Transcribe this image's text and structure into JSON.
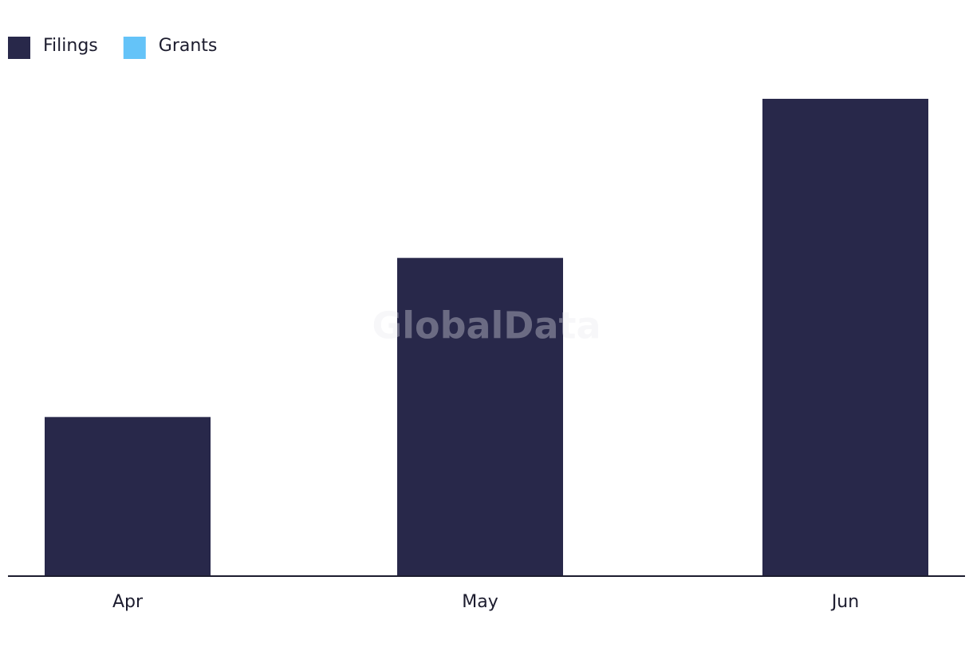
{
  "chart_data": {
    "type": "bar",
    "watermark": "GlobalData",
    "categories": [
      "Apr",
      "May",
      "Jun"
    ],
    "series": [
      {
        "name": "Filings",
        "color": "#28284a",
        "values": [
          1,
          2,
          3
        ]
      },
      {
        "name": "Grants",
        "color": "#64c3f8",
        "values": [
          0,
          0,
          0
        ]
      }
    ],
    "ylim": [
      0,
      3
    ],
    "legend": "top-left"
  }
}
